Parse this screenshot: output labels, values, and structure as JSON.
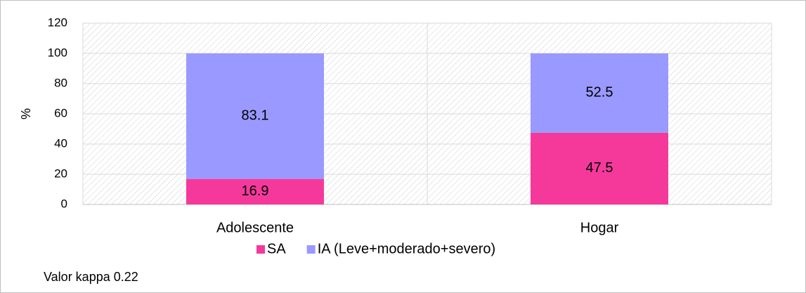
{
  "chart_data": {
    "type": "stacked_bar",
    "categories": [
      "Adolescente",
      "Hogar"
    ],
    "series": [
      {
        "name": "SA",
        "color": "#f5399b",
        "values": [
          16.9,
          47.5
        ]
      },
      {
        "name": "IA (Leve+moderado+severo)",
        "color": "#9999ff",
        "values": [
          83.1,
          52.5
        ]
      }
    ],
    "ylabel": "%",
    "ylim": [
      0,
      120
    ],
    "yticks": [
      0,
      20,
      40,
      60,
      80,
      100,
      120
    ],
    "grid": true,
    "annotation": "Valor kappa 0.22"
  }
}
